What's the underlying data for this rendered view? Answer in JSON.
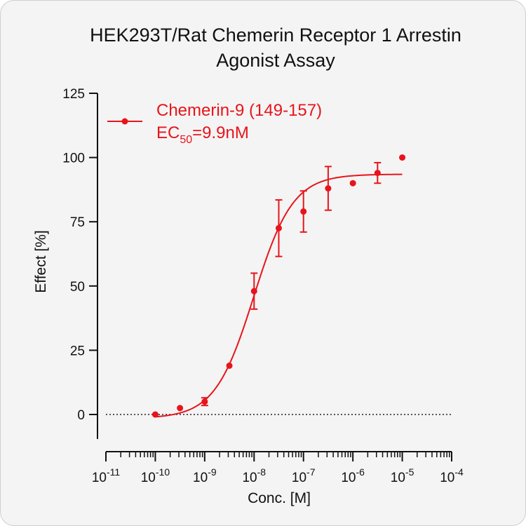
{
  "chart_data": {
    "type": "scatter",
    "title_lines": [
      "HEK293T/Rat Chemerin Receptor 1 Arrestin",
      "Agonist Assay"
    ],
    "xlabel": "Conc. [M]",
    "ylabel": "Effect  [%]",
    "x_scale": "log",
    "xlim": [
      1e-11,
      0.0001
    ],
    "ylim": [
      -10,
      125
    ],
    "x_ticks": [
      {
        "base": "10",
        "exp": "-11"
      },
      {
        "base": "10",
        "exp": "-10"
      },
      {
        "base": "10",
        "exp": "-9"
      },
      {
        "base": "10",
        "exp": "-8"
      },
      {
        "base": "10",
        "exp": "-7"
      },
      {
        "base": "10",
        "exp": "-6"
      },
      {
        "base": "10",
        "exp": "-5"
      },
      {
        "base": "10",
        "exp": "-4"
      }
    ],
    "y_ticks": [
      "0",
      "25",
      "50",
      "75",
      "100",
      "125"
    ],
    "zero_line": true,
    "legend_position": "top-left",
    "series": [
      {
        "name": "Chemerin-9 (149-157)",
        "color": "#e8141a",
        "x": [
          1e-10,
          3.16e-10,
          1e-09,
          3.16e-09,
          1e-08,
          3.16e-08,
          1e-07,
          3.16e-07,
          1e-06,
          3.16e-06,
          1e-05
        ],
        "y": [
          0,
          2.5,
          5,
          19,
          48,
          72.5,
          79,
          88,
          90,
          94,
          100
        ],
        "error": [
          0,
          0,
          1.5,
          0,
          7,
          11,
          8,
          8.5,
          0,
          4,
          0
        ],
        "fit": {
          "bottom": -1.5,
          "top": 93.5,
          "ec50": 9.9e-09,
          "hill": 1.1
        },
        "ec50_label": {
          "prefix": "EC",
          "sub": "50",
          "value": "=9.9nM"
        }
      }
    ]
  }
}
